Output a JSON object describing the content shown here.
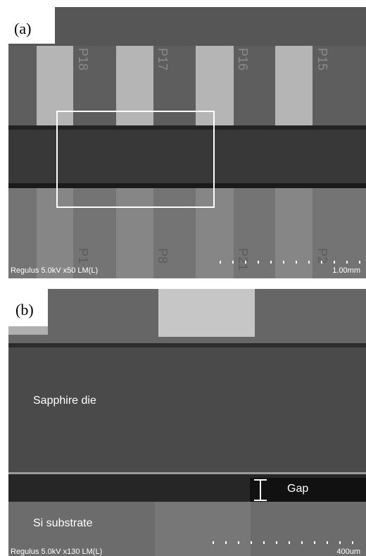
{
  "panel_a": {
    "label": "(a)",
    "pad_labels_top": [
      "P18",
      "P17",
      "P16",
      "P15"
    ],
    "pad_labels_bottom": [
      "P1",
      "P8",
      "P21",
      "P2"
    ],
    "info": "Regulus 5.0kV x50 LM(L)",
    "scale": "1.00mm"
  },
  "panel_b": {
    "label": "(b)",
    "die_label": "Sapphire die",
    "substrate_label": "Si substrate",
    "gap_label": "Gap",
    "info": "Regulus 5.0kV x130 LM(L)",
    "scale": "400um"
  }
}
